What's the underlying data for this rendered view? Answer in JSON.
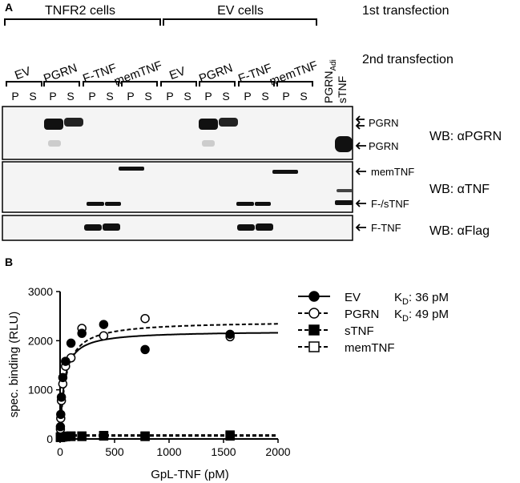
{
  "panel_a": {
    "label": "A",
    "groups": [
      "TNFR2 cells",
      "EV cells"
    ],
    "first_transfection": "1st transfection",
    "second_transfection": "2nd transfection",
    "lanes": [
      "EV",
      "PGRN",
      "F-TNF",
      "memTNF",
      "EV",
      "PGRN",
      "F-TNF",
      "memTNF"
    ],
    "lane_last_main": "PGRN",
    "lane_last_sub": "Adi",
    "lane_last_second": "sTNF",
    "fraction_labels": [
      "P",
      "S"
    ],
    "blots": [
      {
        "wb": "WB: αPGRN",
        "markers": [
          "PGRN",
          "PGRN"
        ]
      },
      {
        "wb": "WB: αTNF",
        "markers": [
          "memTNF",
          "F-/sTNF"
        ]
      },
      {
        "wb": "WB: αFlag",
        "markers": [
          "F-TNF"
        ]
      }
    ]
  },
  "panel_b": {
    "label": "B"
  },
  "chart_data": {
    "type": "scatter",
    "xlabel": "GpL-TNF (pM)",
    "ylabel": "spec. binding (RLU)",
    "xlim": [
      0,
      2000
    ],
    "ylim": [
      0,
      3000
    ],
    "xticks": [
      0,
      500,
      1000,
      1500,
      2000
    ],
    "yticks": [
      0,
      1000,
      2000,
      3000
    ],
    "series": [
      {
        "name": "EV",
        "kd": "36 pM",
        "marker": "filled-circle",
        "line": "solid",
        "x": [
          3,
          6,
          12,
          25,
          50,
          100,
          200,
          400,
          780,
          1560
        ],
        "y": [
          250,
          500,
          850,
          1250,
          1580,
          1950,
          2150,
          2330,
          1820,
          2130
        ],
        "fit_bmax": 2200,
        "fit_kd": 36
      },
      {
        "name": "PGRN",
        "kd": "49 pM",
        "marker": "open-circle",
        "line": "dashed",
        "x": [
          3,
          6,
          12,
          25,
          50,
          100,
          200,
          400,
          780,
          1560
        ],
        "y": [
          200,
          420,
          780,
          1120,
          1480,
          1650,
          2250,
          2100,
          2450,
          2080
        ],
        "fit_bmax": 2400,
        "fit_kd": 49
      },
      {
        "name": "sTNF",
        "marker": "filled-square",
        "line": "dashed",
        "x": [
          3,
          6,
          12,
          25,
          50,
          100,
          200,
          400,
          780,
          1560
        ],
        "y": [
          30,
          35,
          40,
          40,
          45,
          50,
          50,
          60,
          50,
          60
        ]
      },
      {
        "name": "memTNF",
        "marker": "open-square",
        "line": "dashed",
        "x": [
          3,
          6,
          12,
          25,
          50,
          100,
          200,
          400,
          780,
          1560
        ],
        "y": [
          40,
          45,
          50,
          55,
          55,
          60,
          60,
          70,
          60,
          80
        ]
      }
    ],
    "legend_placement": "right",
    "kd_label": "K",
    "kd_sub": "D"
  }
}
